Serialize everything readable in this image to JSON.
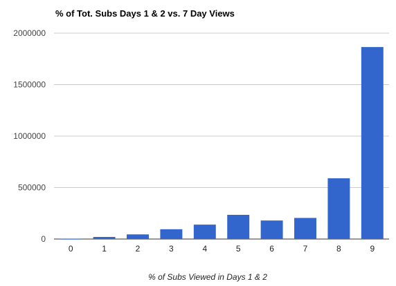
{
  "chart_data": {
    "type": "bar",
    "title": "% of Tot. Subs Days 1 & 2 vs. 7 Day Views",
    "xlabel": "% of Subs Viewed in Days 1 & 2",
    "ylabel": "",
    "categories": [
      "0",
      "1",
      "2",
      "3",
      "4",
      "5",
      "6",
      "7",
      "8",
      "9"
    ],
    "values": [
      2000,
      20000,
      45000,
      95000,
      140000,
      235000,
      180000,
      205000,
      590000,
      1865000
    ],
    "ylim": [
      0,
      2000000
    ],
    "yticks": [
      "0",
      "500000",
      "1000000",
      "1500000",
      "2000000"
    ],
    "grid": true,
    "bar_color": "#3366cc"
  }
}
